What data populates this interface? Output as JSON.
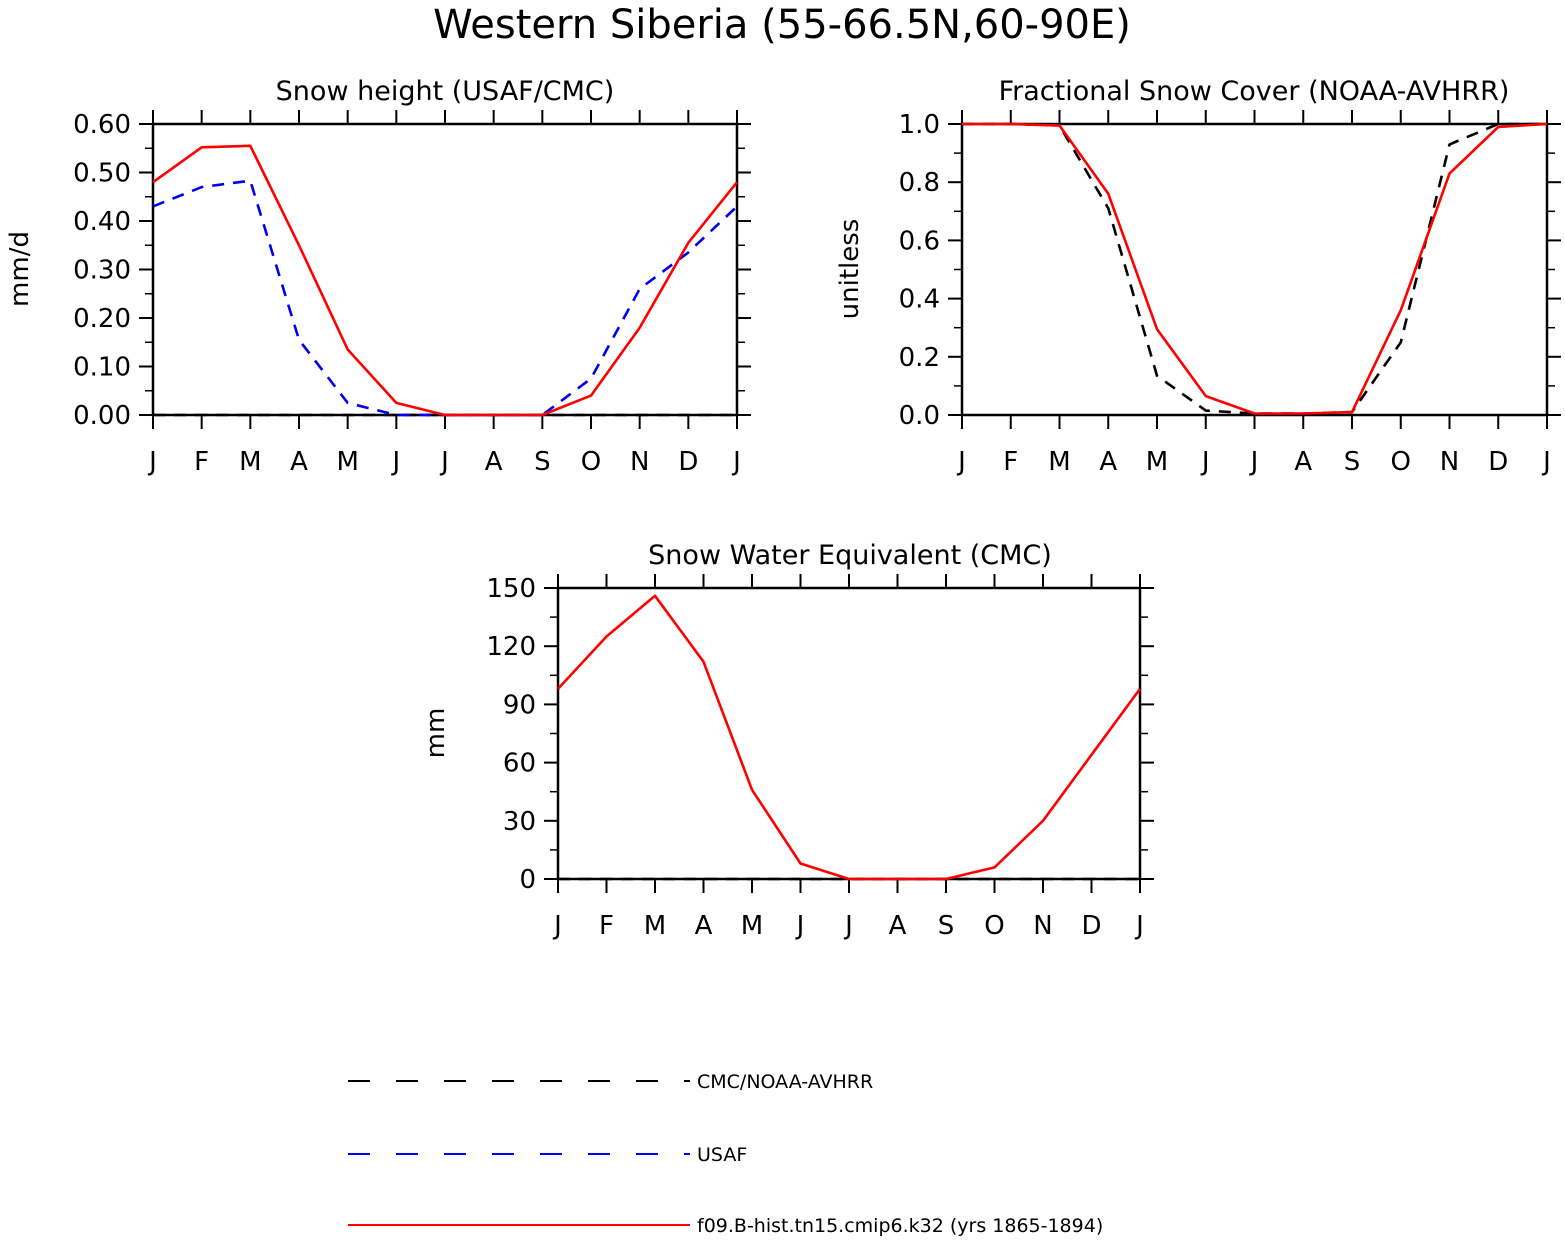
{
  "figure": {
    "title": "Western Siberia (55-66.5N,60-90E)"
  },
  "chart_data": [
    {
      "type": "line",
      "title": "Snow height (USAF/CMC)",
      "xlabel": "",
      "ylabel": "mm/d",
      "x": [
        "J",
        "F",
        "M",
        "A",
        "M",
        "J",
        "J",
        "A",
        "S",
        "O",
        "N",
        "D",
        "J"
      ],
      "xlim": [
        0,
        12
      ],
      "ylim": [
        0,
        0.6
      ],
      "yticks": [
        "0.00",
        "0.10",
        "0.20",
        "0.30",
        "0.40",
        "0.50",
        "0.60"
      ],
      "grid": false,
      "series": [
        {
          "name": "CMC/NOAA-AVHRR",
          "style": "dashed",
          "color": "#000000",
          "values": [
            0,
            0,
            0,
            0,
            0,
            0,
            0,
            0,
            0,
            0,
            0,
            0,
            0
          ]
        },
        {
          "name": "USAF",
          "style": "dashed",
          "color": "#0000ee",
          "values": [
            0.43,
            0.47,
            0.483,
            0.155,
            0.025,
            0.0,
            0.0,
            0.0,
            0.0,
            0.075,
            0.26,
            0.335,
            0.43
          ]
        },
        {
          "name": "f09.B-hist.tn15.cmip6.k32 (yrs 1865-1894)",
          "style": "solid",
          "color": "#ff0000",
          "values": [
            0.48,
            0.552,
            0.555,
            0.35,
            0.135,
            0.025,
            0.0,
            0.0,
            0.0,
            0.04,
            0.18,
            0.355,
            0.48
          ]
        }
      ]
    },
    {
      "type": "line",
      "title": "Fractional Snow Cover (NOAA-AVHRR)",
      "xlabel": "",
      "ylabel": "unitless",
      "x": [
        "J",
        "F",
        "M",
        "A",
        "M",
        "J",
        "J",
        "A",
        "S",
        "O",
        "N",
        "D",
        "J"
      ],
      "xlim": [
        0,
        12
      ],
      "ylim": [
        0,
        1.0
      ],
      "yticks": [
        "0.0",
        "0.2",
        "0.4",
        "0.6",
        "0.8",
        "1.0"
      ],
      "grid": false,
      "series": [
        {
          "name": "CMC/NOAA-AVHRR",
          "style": "dashed",
          "color": "#000000",
          "values": [
            1.0,
            1.0,
            0.995,
            0.71,
            0.135,
            0.015,
            0.005,
            0.005,
            0.01,
            0.25,
            0.93,
            1.0,
            1.0
          ]
        },
        {
          "name": "f09.B-hist.tn15.cmip6.k32 (yrs 1865-1894)",
          "style": "solid",
          "color": "#ff0000",
          "values": [
            1.0,
            1.0,
            0.995,
            0.76,
            0.295,
            0.065,
            0.005,
            0.005,
            0.01,
            0.36,
            0.83,
            0.99,
            1.0
          ]
        }
      ]
    },
    {
      "type": "line",
      "title": "Snow Water Equivalent (CMC)",
      "xlabel": "",
      "ylabel": "mm",
      "x": [
        "J",
        "F",
        "M",
        "A",
        "M",
        "J",
        "J",
        "A",
        "S",
        "O",
        "N",
        "D",
        "J"
      ],
      "xlim": [
        0,
        12
      ],
      "ylim": [
        0,
        150
      ],
      "yticks": [
        "0",
        "30",
        "60",
        "90",
        "120",
        "150"
      ],
      "grid": false,
      "series": [
        {
          "name": "CMC/NOAA-AVHRR",
          "style": "dashed",
          "color": "#000000",
          "values": [
            0,
            0,
            0,
            0,
            0,
            0,
            0,
            0,
            0,
            0,
            0,
            0,
            0
          ]
        },
        {
          "name": "f09.B-hist.tn15.cmip6.k32 (yrs 1865-1894)",
          "style": "solid",
          "color": "#ff0000",
          "values": [
            98,
            125,
            146,
            112,
            46,
            8,
            0,
            0,
            0,
            6,
            30,
            64,
            98
          ]
        }
      ]
    }
  ],
  "legend": {
    "placement": "bottom",
    "entries": [
      {
        "label": "CMC/NOAA-AVHRR",
        "style": "dashed",
        "color": "#000000"
      },
      {
        "label": "USAF",
        "style": "dashed",
        "color": "#0000ee"
      },
      {
        "label": "f09.B-hist.tn15.cmip6.k32 (yrs 1865-1894)",
        "style": "solid",
        "color": "#ff0000"
      }
    ]
  }
}
